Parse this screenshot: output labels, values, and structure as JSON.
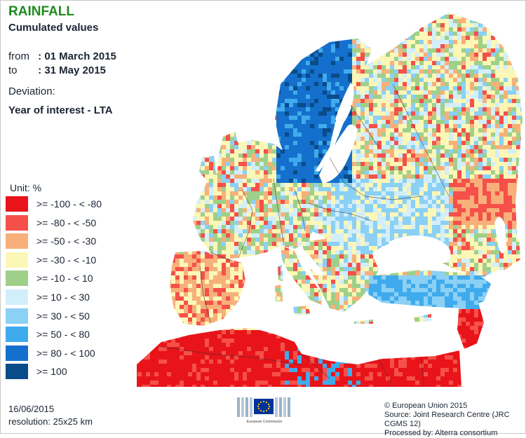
{
  "title": "RAINFALL",
  "subtitle": "Cumulated values",
  "period": {
    "from_label": "from",
    "from_value": ": 01 March 2015",
    "to_label": "to",
    "to_value": ": 31 May 2015"
  },
  "deviation": {
    "label": "Deviation:",
    "value": "Year of interest - LTA"
  },
  "legend": {
    "unit_label": "Unit:  %",
    "items": [
      {
        "label": ">= -100 - < -80",
        "color": "#e8141a"
      },
      {
        "label": ">= -80 - < -50",
        "color": "#f5504a"
      },
      {
        "label": ">= -50 - < -30",
        "color": "#f7b07a"
      },
      {
        "label": ">= -30 - < -10",
        "color": "#fbf7b6"
      },
      {
        "label": ">= -10 - < 10",
        "color": "#9fd08a"
      },
      {
        "label": ">= 10 - < 30",
        "color": "#d3eefb"
      },
      {
        "label": ">= 30 - < 50",
        "color": "#8bd0f5"
      },
      {
        "label": ">= 50 - < 80",
        "color": "#3fabec"
      },
      {
        "label": ">= 80 - < 100",
        "color": "#1470cc"
      },
      {
        "label": ">= 100",
        "color": "#0a4b8a"
      }
    ]
  },
  "footer": {
    "date": "16/06/2015",
    "resolution": "resolution:  25x25 km",
    "credits": [
      "© European Union 2015",
      "Source: Joint Research Centre (JRC CGMS 12)",
      "Processed by: Alterra consortium"
    ],
    "logo_text": "European Commission"
  }
}
